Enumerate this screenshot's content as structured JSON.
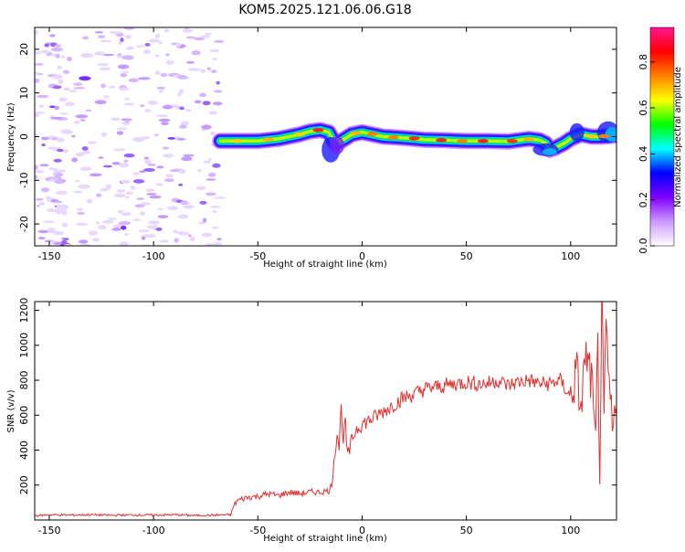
{
  "title": "KOM5.2025.121.06.06.G18",
  "spectrogram": {
    "type": "heatmap",
    "xlabel": "Height of straight line (km)",
    "ylabel": "Frequency (Hz)",
    "xlim": [
      -157,
      122
    ],
    "ylim": [
      -25,
      25
    ],
    "xticks": [
      -150,
      -100,
      -50,
      0,
      50,
      100
    ],
    "yticks": [
      -20,
      -10,
      0,
      10,
      20
    ],
    "colorbar": {
      "label": "Normalized spectral amplitude",
      "range": [
        0,
        0.95
      ],
      "ticks": [
        "0.0",
        "0.2",
        "0.4",
        "0.6",
        "0.8"
      ],
      "colors": [
        "#ffffff",
        "#cc99ff",
        "#8000ff",
        "#0000ff",
        "#00ffff",
        "#00ff00",
        "#ffff00",
        "#ff8000",
        "#ff0000",
        "#ff1493"
      ]
    },
    "noise_region_x": [
      -157,
      -68
    ],
    "signal_start_x": -68,
    "ridge_frequency": {
      "x": [
        -68,
        -60,
        -50,
        -40,
        -30,
        -25,
        -20,
        -16,
        -13,
        -10,
        -5,
        0,
        10,
        20,
        30,
        40,
        50,
        60,
        70,
        80,
        85,
        88,
        90,
        93,
        97,
        100,
        105,
        110,
        115,
        122
      ],
      "y": [
        -1.0,
        -1.0,
        -1.0,
        -0.5,
        0.5,
        1.2,
        1.5,
        1.0,
        -1.5,
        -1.0,
        0.5,
        1.0,
        0.0,
        -0.3,
        -0.7,
        -0.8,
        -1.0,
        -1.0,
        -1.1,
        -0.5,
        -0.8,
        -1.5,
        -3.0,
        -2.5,
        -1.5,
        -0.5,
        0.5,
        0.0,
        0.0,
        0.3
      ]
    }
  },
  "chart_data": {
    "type": "line",
    "xlabel": "Height of straight line (km)",
    "ylabel": "SNR (v/v)",
    "xlim": [
      -157,
      122
    ],
    "ylim": [
      0,
      1250
    ],
    "xticks": [
      -150,
      -100,
      -50,
      0,
      50,
      100
    ],
    "yticks": [
      200,
      400,
      600,
      800,
      1000,
      1200
    ],
    "series_color": "#e03030",
    "series": [
      {
        "x": [
          -157,
          -150,
          -140,
          -130,
          -120,
          -110,
          -100,
          -90,
          -80,
          -70,
          -63,
          -62,
          -60,
          -55,
          -50,
          -45,
          -40,
          -35,
          -30,
          -25,
          -20,
          -15,
          -13,
          -12,
          -11,
          -10,
          -9,
          -8,
          -7,
          -5,
          -3,
          0,
          5,
          10,
          15,
          20,
          25,
          30,
          35,
          40,
          45,
          50,
          55,
          60,
          65,
          70,
          75,
          80,
          85,
          90,
          95,
          100,
          103,
          105,
          107,
          110,
          112,
          113,
          114,
          115,
          116,
          117,
          118,
          120,
          122
        ],
        "y": [
          25,
          30,
          28,
          30,
          27,
          29,
          28,
          30,
          26,
          28,
          30,
          70,
          110,
          130,
          135,
          150,
          140,
          160,
          150,
          160,
          160,
          170,
          400,
          500,
          420,
          650,
          450,
          560,
          350,
          450,
          520,
          550,
          580,
          620,
          660,
          700,
          720,
          750,
          760,
          770,
          780,
          790,
          780,
          780,
          800,
          770,
          790,
          800,
          780,
          780,
          800,
          700,
          850,
          620,
          950,
          800,
          400,
          1000,
          300,
          1250,
          500,
          1100,
          850,
          500,
          650
        ]
      }
    ]
  }
}
